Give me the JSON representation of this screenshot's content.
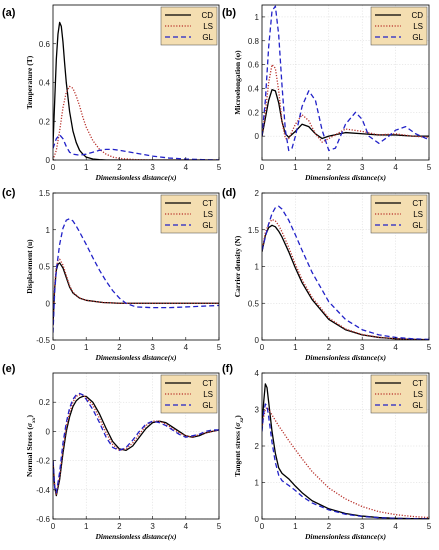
{
  "chart_data": [
    {
      "type": "line",
      "panel": "(a)",
      "ylabel": "Temperature (T)",
      "xlabel": "Dimensionless distance(x)",
      "xlim": [
        0,
        5
      ],
      "ylim": [
        0,
        0.8
      ],
      "xticks": [
        0,
        1,
        2,
        3,
        4,
        5
      ],
      "yticks": [
        0,
        0.2,
        0.4,
        0.6
      ],
      "grid": false,
      "legend": "top-right",
      "legend_bg": "#f4deb1",
      "series": [
        {
          "name": "CD",
          "color": "#000000",
          "dash": "solid",
          "x": [
            0,
            0.05,
            0.1,
            0.15,
            0.2,
            0.25,
            0.3,
            0.35,
            0.4,
            0.5,
            0.6,
            0.7,
            0.8,
            0.9,
            1.0,
            1.2,
            1.4,
            1.6,
            2.0,
            3.0,
            5.0
          ],
          "y": [
            0.08,
            0.3,
            0.52,
            0.65,
            0.71,
            0.69,
            0.61,
            0.5,
            0.4,
            0.25,
            0.15,
            0.09,
            0.05,
            0.03,
            0.015,
            0.005,
            0.002,
            0.0,
            0.0,
            0.0,
            0.0
          ]
        },
        {
          "name": "LS",
          "color": "#b8302a",
          "dash": "dot",
          "x": [
            0,
            0.1,
            0.2,
            0.3,
            0.4,
            0.5,
            0.6,
            0.7,
            0.8,
            0.9,
            1.0,
            1.2,
            1.4,
            1.6,
            1.8,
            2.0,
            2.5,
            3.0,
            4.0,
            5.0
          ],
          "y": [
            0.0,
            0.05,
            0.15,
            0.27,
            0.35,
            0.38,
            0.37,
            0.33,
            0.28,
            0.22,
            0.17,
            0.1,
            0.055,
            0.03,
            0.015,
            0.008,
            0.002,
            0.0,
            0.0,
            0.0
          ]
        },
        {
          "name": "GL",
          "color": "#2222c8",
          "dash": "dash",
          "x": [
            0,
            0.1,
            0.2,
            0.3,
            0.4,
            0.5,
            0.6,
            0.8,
            1.0,
            1.2,
            1.4,
            1.6,
            1.8,
            2.0,
            2.5,
            3.0,
            3.5,
            4.0,
            4.5,
            5.0
          ],
          "y": [
            0.06,
            0.11,
            0.13,
            0.11,
            0.07,
            0.04,
            0.03,
            0.025,
            0.03,
            0.04,
            0.05,
            0.055,
            0.055,
            0.05,
            0.035,
            0.02,
            0.01,
            0.005,
            0.002,
            0.0
          ]
        }
      ]
    },
    {
      "type": "line",
      "panel": "(b)",
      "ylabel": "Microelongation (φ)",
      "xlabel": "Dimensionless distance(x)",
      "xlim": [
        0,
        5
      ],
      "ylim": [
        -0.2,
        1.1
      ],
      "xticks": [
        0,
        1,
        2,
        3,
        4,
        5
      ],
      "yticks": [
        0,
        0.2,
        0.4,
        0.6,
        0.8,
        1
      ],
      "grid": true,
      "legend": "top-right",
      "legend_bg": "#f4deb1",
      "series": [
        {
          "name": "CD",
          "color": "#000000",
          "dash": "solid",
          "x": [
            0,
            0.1,
            0.2,
            0.3,
            0.4,
            0.5,
            0.6,
            0.7,
            0.8,
            1.0,
            1.2,
            1.4,
            1.6,
            1.8,
            2.0,
            2.5,
            3.0,
            3.5,
            4.0,
            4.5,
            5.0
          ],
          "y": [
            0.0,
            0.15,
            0.3,
            0.39,
            0.38,
            0.28,
            0.12,
            0.02,
            -0.01,
            0.04,
            0.1,
            0.08,
            0.02,
            -0.02,
            0.0,
            0.03,
            0.02,
            0.01,
            0.01,
            0.0,
            0.0
          ]
        },
        {
          "name": "LS",
          "color": "#b8302a",
          "dash": "dot",
          "x": [
            0,
            0.1,
            0.2,
            0.3,
            0.4,
            0.5,
            0.6,
            0.7,
            0.8,
            1.0,
            1.2,
            1.4,
            1.6,
            1.8,
            2.0,
            2.5,
            3.0,
            3.5,
            4.0,
            4.5,
            5.0
          ],
          "y": [
            0.0,
            0.2,
            0.45,
            0.6,
            0.57,
            0.38,
            0.12,
            -0.02,
            -0.02,
            0.1,
            0.18,
            0.13,
            0.02,
            -0.05,
            -0.02,
            0.06,
            0.04,
            0.01,
            0.02,
            0.0,
            -0.01
          ]
        },
        {
          "name": "GL",
          "color": "#2222c8",
          "dash": "dash",
          "x": [
            0,
            0.1,
            0.2,
            0.3,
            0.4,
            0.5,
            0.6,
            0.7,
            0.8,
            0.9,
            1.0,
            1.2,
            1.4,
            1.6,
            1.8,
            2.0,
            2.2,
            2.5,
            2.8,
            3.0,
            3.2,
            3.5,
            3.8,
            4.0,
            4.3,
            4.6,
            5.0
          ],
          "y": [
            0.0,
            0.3,
            0.75,
            1.05,
            1.09,
            0.85,
            0.42,
            0.05,
            -0.12,
            -0.1,
            0.0,
            0.25,
            0.38,
            0.3,
            0.05,
            -0.12,
            -0.1,
            0.1,
            0.2,
            0.14,
            0.0,
            -0.06,
            0.0,
            0.05,
            0.08,
            0.02,
            -0.03
          ]
        }
      ]
    },
    {
      "type": "line",
      "panel": "(c)",
      "ylabel": "Displacement (u)",
      "xlabel": "Dimensionless distance(x)",
      "xlim": [
        0,
        5
      ],
      "ylim": [
        -0.5,
        1.5
      ],
      "xticks": [
        0,
        1,
        2,
        3,
        4,
        5
      ],
      "yticks": [
        -0.5,
        0,
        0.5,
        1,
        1.5
      ],
      "grid": false,
      "legend": "top-right",
      "legend_bg": "#f4deb1",
      "series": [
        {
          "name": "CT",
          "color": "#000000",
          "dash": "solid",
          "x": [
            0,
            0.05,
            0.1,
            0.15,
            0.2,
            0.3,
            0.4,
            0.5,
            0.6,
            0.8,
            1.0,
            1.5,
            2.0,
            3.0,
            4.0,
            5.0
          ],
          "y": [
            -0.3,
            0.2,
            0.45,
            0.53,
            0.55,
            0.48,
            0.35,
            0.22,
            0.14,
            0.07,
            0.04,
            0.01,
            0.0,
            0.0,
            0.0,
            0.0
          ]
        },
        {
          "name": "LS",
          "color": "#b8302a",
          "dash": "dot",
          "x": [
            0,
            0.05,
            0.1,
            0.15,
            0.2,
            0.3,
            0.4,
            0.5,
            0.6,
            0.8,
            1.0,
            1.5,
            2.0,
            3.0,
            4.0,
            5.0
          ],
          "y": [
            -0.3,
            0.25,
            0.5,
            0.58,
            0.6,
            0.52,
            0.38,
            0.24,
            0.15,
            0.07,
            0.04,
            0.01,
            0.0,
            0.0,
            0.0,
            0.0
          ]
        },
        {
          "name": "GL",
          "color": "#2222c8",
          "dash": "dash",
          "x": [
            0,
            0.05,
            0.1,
            0.2,
            0.3,
            0.4,
            0.5,
            0.6,
            0.7,
            0.8,
            1.0,
            1.2,
            1.4,
            1.6,
            1.8,
            2.0,
            2.2,
            2.5,
            3.0,
            3.5,
            4.0,
            4.5,
            5.0
          ],
          "y": [
            -0.4,
            0.15,
            0.45,
            0.8,
            1.02,
            1.13,
            1.15,
            1.12,
            1.05,
            0.97,
            0.8,
            0.62,
            0.45,
            0.3,
            0.17,
            0.07,
            0.0,
            -0.05,
            -0.06,
            -0.06,
            -0.05,
            -0.04,
            -0.03
          ]
        }
      ]
    },
    {
      "type": "line",
      "panel": "(d)",
      "ylabel": "Carrier density (N)",
      "xlabel": "Dimensionless distance(x)",
      "xlim": [
        0,
        5
      ],
      "ylim": [
        0,
        2
      ],
      "xticks": [
        0,
        1,
        2,
        3,
        4,
        5
      ],
      "yticks": [
        0,
        0.5,
        1,
        1.5,
        2
      ],
      "grid": true,
      "legend": "top-right",
      "legend_bg": "#f4deb1",
      "series": [
        {
          "name": "CT",
          "color": "#000000",
          "dash": "solid",
          "x": [
            0,
            0.1,
            0.2,
            0.3,
            0.4,
            0.5,
            0.6,
            0.8,
            1.0,
            1.2,
            1.5,
            2.0,
            2.5,
            3.0,
            3.5,
            4.0,
            4.5,
            5.0
          ],
          "y": [
            1.2,
            1.42,
            1.53,
            1.56,
            1.54,
            1.48,
            1.4,
            1.2,
            0.98,
            0.78,
            0.55,
            0.28,
            0.14,
            0.07,
            0.035,
            0.017,
            0.008,
            0.004
          ]
        },
        {
          "name": "LS",
          "color": "#b8302a",
          "dash": "dot",
          "x": [
            0,
            0.1,
            0.2,
            0.3,
            0.4,
            0.5,
            0.6,
            0.8,
            1.0,
            1.2,
            1.5,
            2.0,
            2.5,
            3.0,
            3.5,
            4.0,
            4.5,
            5.0
          ],
          "y": [
            1.22,
            1.46,
            1.58,
            1.64,
            1.62,
            1.56,
            1.47,
            1.26,
            1.03,
            0.82,
            0.58,
            0.3,
            0.15,
            0.075,
            0.037,
            0.018,
            0.009,
            0.004
          ]
        },
        {
          "name": "GL",
          "color": "#2222c8",
          "dash": "dash",
          "x": [
            0,
            0.1,
            0.2,
            0.3,
            0.4,
            0.5,
            0.6,
            0.8,
            1.0,
            1.2,
            1.5,
            2.0,
            2.5,
            3.0,
            3.5,
            4.0,
            4.5,
            5.0
          ],
          "y": [
            1.22,
            1.4,
            1.58,
            1.72,
            1.8,
            1.82,
            1.78,
            1.63,
            1.43,
            1.22,
            0.92,
            0.52,
            0.28,
            0.14,
            0.07,
            0.035,
            0.017,
            0.008
          ]
        }
      ]
    },
    {
      "type": "line",
      "panel": "(e)",
      "ylabel": "Normal Stress (σxx)",
      "xlabel": "Dimensionless distance(x)",
      "xlim": [
        0,
        5
      ],
      "ylim": [
        -0.6,
        0.4
      ],
      "xticks": [
        0,
        1,
        2,
        3,
        4,
        5
      ],
      "yticks": [
        -0.6,
        -0.4,
        -0.2,
        0,
        0.2
      ],
      "grid": true,
      "legend": "top-right",
      "legend_bg": "#f4deb1",
      "series": [
        {
          "name": "CT",
          "color": "#000000",
          "dash": "solid",
          "x": [
            0,
            0.05,
            0.1,
            0.2,
            0.3,
            0.4,
            0.5,
            0.6,
            0.7,
            0.8,
            0.9,
            1.0,
            1.2,
            1.4,
            1.6,
            1.8,
            2.0,
            2.2,
            2.4,
            2.6,
            2.8,
            3.0,
            3.2,
            3.4,
            3.6,
            3.8,
            4.0,
            4.2,
            4.4,
            4.6,
            4.8,
            5.0
          ],
          "y": [
            -0.2,
            -0.38,
            -0.44,
            -0.33,
            -0.15,
            0.0,
            0.1,
            0.17,
            0.21,
            0.23,
            0.24,
            0.24,
            0.2,
            0.12,
            0.02,
            -0.07,
            -0.12,
            -0.13,
            -0.1,
            -0.04,
            0.02,
            0.06,
            0.07,
            0.06,
            0.03,
            0.0,
            -0.03,
            -0.04,
            -0.03,
            -0.01,
            0.0,
            0.01
          ]
        },
        {
          "name": "LS",
          "color": "#b8302a",
          "dash": "dot",
          "x": [
            0,
            0.05,
            0.1,
            0.2,
            0.3,
            0.4,
            0.5,
            0.6,
            0.7,
            0.8,
            0.9,
            1.0,
            1.2,
            1.4,
            1.6,
            1.8,
            2.0,
            2.2,
            2.4,
            2.6,
            2.8,
            3.0,
            3.2,
            3.4,
            3.6,
            3.8,
            4.0,
            4.2,
            4.4,
            4.6,
            4.8,
            5.0
          ],
          "y": [
            -0.2,
            -0.37,
            -0.43,
            -0.31,
            -0.12,
            0.03,
            0.13,
            0.2,
            0.24,
            0.25,
            0.25,
            0.23,
            0.18,
            0.09,
            -0.01,
            -0.09,
            -0.13,
            -0.12,
            -0.08,
            -0.02,
            0.04,
            0.07,
            0.07,
            0.05,
            0.02,
            -0.01,
            -0.03,
            -0.04,
            -0.02,
            -0.01,
            0.0,
            0.01
          ]
        },
        {
          "name": "GL",
          "color": "#2222c8",
          "dash": "dash",
          "x": [
            0,
            0.05,
            0.1,
            0.2,
            0.3,
            0.4,
            0.5,
            0.6,
            0.7,
            0.8,
            0.9,
            1.0,
            1.2,
            1.4,
            1.6,
            1.8,
            2.0,
            2.2,
            2.4,
            2.6,
            2.8,
            3.0,
            3.2,
            3.4,
            3.6,
            3.8,
            4.0,
            4.2,
            4.4,
            4.6,
            4.8,
            5.0
          ],
          "y": [
            -0.2,
            -0.38,
            -0.42,
            -0.28,
            -0.08,
            0.06,
            0.16,
            0.22,
            0.25,
            0.26,
            0.25,
            0.22,
            0.15,
            0.06,
            -0.04,
            -0.11,
            -0.13,
            -0.11,
            -0.06,
            0.0,
            0.05,
            0.07,
            0.06,
            0.04,
            0.01,
            -0.02,
            -0.04,
            -0.03,
            -0.02,
            0.0,
            0.01,
            0.01
          ]
        }
      ]
    },
    {
      "type": "line",
      "panel": "(f)",
      "ylabel": "Tangent stress (σxz)",
      "xlabel": "Dimensionless distance(x)",
      "xlim": [
        0,
        5
      ],
      "ylim": [
        0,
        4
      ],
      "xticks": [
        0,
        1,
        2,
        3,
        4,
        5
      ],
      "yticks": [
        0,
        1,
        2,
        3,
        4
      ],
      "grid": true,
      "legend": "top-right",
      "legend_bg": "#f4deb1",
      "series": [
        {
          "name": "CT",
          "color": "#000000",
          "dash": "solid",
          "x": [
            0,
            0.05,
            0.1,
            0.15,
            0.2,
            0.3,
            0.4,
            0.5,
            0.6,
            0.8,
            1.0,
            1.2,
            1.5,
            2.0,
            2.5,
            3.0,
            3.5,
            4.0,
            4.5,
            5.0
          ],
          "y": [
            2.5,
            3.2,
            3.7,
            3.6,
            3.2,
            2.4,
            1.8,
            1.4,
            1.25,
            1.1,
            0.9,
            0.72,
            0.5,
            0.28,
            0.15,
            0.08,
            0.04,
            0.02,
            0.01,
            0.005
          ]
        },
        {
          "name": "LS",
          "color": "#b8302a",
          "dash": "dot",
          "x": [
            0,
            0.05,
            0.1,
            0.15,
            0.2,
            0.3,
            0.4,
            0.5,
            0.6,
            0.8,
            1.0,
            1.2,
            1.5,
            2.0,
            2.5,
            3.0,
            3.5,
            4.0,
            4.5,
            5.0
          ],
          "y": [
            2.5,
            2.8,
            3.0,
            3.05,
            3.0,
            2.85,
            2.7,
            2.55,
            2.42,
            2.15,
            1.9,
            1.65,
            1.3,
            0.85,
            0.55,
            0.34,
            0.2,
            0.12,
            0.07,
            0.04
          ]
        },
        {
          "name": "GL",
          "color": "#2222c8",
          "dash": "dash",
          "x": [
            0,
            0.05,
            0.1,
            0.15,
            0.2,
            0.3,
            0.4,
            0.5,
            0.6,
            0.8,
            1.0,
            1.2,
            1.5,
            2.0,
            2.5,
            3.0,
            3.5,
            4.0,
            4.5,
            5.0
          ],
          "y": [
            2.4,
            2.9,
            3.15,
            3.1,
            2.8,
            2.1,
            1.55,
            1.2,
            1.05,
            0.92,
            0.78,
            0.62,
            0.44,
            0.25,
            0.13,
            0.07,
            0.035,
            0.018,
            0.009,
            0.004
          ]
        }
      ]
    }
  ]
}
